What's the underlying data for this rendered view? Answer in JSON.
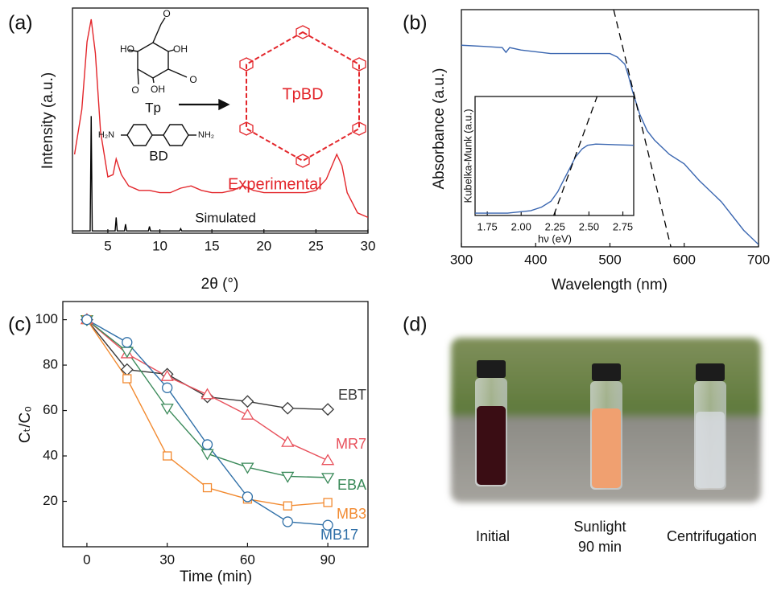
{
  "chart_data": [
    {
      "type": "line",
      "panel_label": "(a)",
      "x_label": "2θ (°)",
      "y_label": "Intensity (a.u.)",
      "xlim": [
        1.6,
        30
      ],
      "ylim": [
        0,
        100
      ],
      "xticks": [
        5,
        10,
        15,
        20,
        25,
        30
      ],
      "series": [
        {
          "name": "Experimental",
          "color": "#e3262b",
          "x": [
            1.8,
            2.5,
            3.0,
            3.4,
            3.8,
            4.3,
            5.0,
            5.5,
            5.8,
            6.3,
            7,
            8,
            9,
            10,
            11,
            12,
            13,
            14,
            15,
            16,
            17,
            18,
            19,
            20,
            22,
            24,
            25,
            26,
            27,
            27.5,
            28,
            29,
            30
          ],
          "values": [
            35,
            55,
            85,
            95,
            80,
            45,
            25,
            26,
            33,
            26,
            21,
            19,
            19,
            18,
            18,
            20,
            21,
            19,
            18,
            18,
            19,
            21,
            19,
            18,
            18,
            18,
            19,
            24,
            35,
            30,
            18,
            9,
            7
          ]
        },
        {
          "name": "Simulated",
          "color": "#000000",
          "x": [
            1.6,
            3.3,
            3.4,
            3.5,
            5.7,
            5.8,
            5.9,
            6.6,
            6.7,
            6.8,
            8.9,
            9,
            9.1,
            11.9,
            12,
            12.1,
            30
          ],
          "values": [
            1,
            1,
            52,
            1,
            1,
            7,
            1,
            1,
            4,
            1,
            1,
            3,
            1,
            1,
            2,
            1,
            1
          ]
        }
      ],
      "annotations": [
        "Tp",
        "BD",
        "TpBD",
        "HO",
        "OH",
        "OH",
        "O",
        "O",
        "O",
        "H₂N",
        "NH₂"
      ]
    },
    {
      "type": "line",
      "panel_label": "(b)",
      "x_label": "Wavelength (nm)",
      "y_label": "Absorbance (a.u.)",
      "xlim": [
        300,
        700
      ],
      "ylim": [
        0,
        100
      ],
      "xticks": [
        300,
        400,
        500,
        600,
        700
      ],
      "series": [
        {
          "color": "#3a66b0",
          "x": [
            300,
            330,
            355,
            360,
            365,
            380,
            420,
            460,
            500,
            510,
            520,
            525,
            530,
            540,
            550,
            560,
            580,
            600,
            620,
            650,
            680,
            700
          ],
          "values": [
            85,
            84.5,
            84,
            82,
            84,
            83,
            81.5,
            81.5,
            81.5,
            80,
            77,
            72,
            66,
            56,
            49,
            45,
            39,
            35,
            28,
            19,
            7,
            1
          ]
        },
        {
          "color": "#000000",
          "dashed": true,
          "x": [
            505,
            582
          ],
          "values": [
            100,
            0
          ]
        }
      ]
    },
    {
      "type": "line",
      "x_label": "hν (eV)",
      "y_label": "Kubelka-Munk (a.u.)",
      "xlim": [
        1.66,
        2.83
      ],
      "ylim": [
        0,
        100
      ],
      "xticks": [
        1.75,
        {
          "value": 2,
          "label": "2.00"
        },
        2.25,
        {
          "value": 2.5,
          "label": "2.50"
        },
        2.75
      ],
      "series": [
        {
          "color": "#3a66b0",
          "x": [
            1.66,
            1.9,
            2.07,
            2.15,
            2.22,
            2.27,
            2.31,
            2.36,
            2.4,
            2.45,
            2.49,
            2.55,
            2.83
          ],
          "values": [
            2,
            2,
            4,
            7,
            12,
            20,
            29,
            40,
            49,
            56,
            59,
            60,
            59
          ]
        },
        {
          "color": "#000000",
          "dashed": true,
          "x": [
            2.24,
            2.56
          ],
          "values": [
            0,
            100
          ]
        }
      ]
    },
    {
      "type": "line",
      "panel_label": "(c)",
      "x_label": "Time (min)",
      "y_label": "Cₜ/C₀",
      "xlim": [
        -9,
        105
      ],
      "ylim": [
        0,
        108
      ],
      "xticks": [
        0,
        30,
        60,
        90
      ],
      "yticks": [
        20,
        40,
        60,
        80,
        100
      ],
      "x": [
        0,
        15,
        30,
        45,
        60,
        75,
        90
      ],
      "series": [
        {
          "name": "EBT",
          "color": "#3a3a3a",
          "marker": "diamond",
          "values": [
            100,
            78,
            76,
            66,
            64,
            61,
            60.5
          ]
        },
        {
          "name": "MR7",
          "color": "#e8505b",
          "marker": "triangle-up",
          "values": [
            100,
            85,
            75,
            67,
            58,
            46,
            38
          ]
        },
        {
          "name": "EBA",
          "color": "#3b8a5a",
          "marker": "triangle-down",
          "values": [
            100,
            86,
            61,
            41,
            35,
            31,
            30.5
          ]
        },
        {
          "name": "MB3",
          "color": "#f28a30",
          "marker": "square",
          "values": [
            100,
            74,
            40,
            26,
            21,
            18,
            19.5
          ]
        },
        {
          "name": "MB17",
          "color": "#2f6fa7",
          "marker": "circle",
          "values": [
            100,
            90,
            70,
            45,
            22,
            11,
            9.5
          ]
        }
      ]
    }
  ],
  "photo_panel": {
    "panel_label": "(d)",
    "captions": [
      [
        "Initial"
      ],
      [
        "Sunlight",
        "90 min"
      ],
      [
        "Centrifugation"
      ]
    ]
  }
}
